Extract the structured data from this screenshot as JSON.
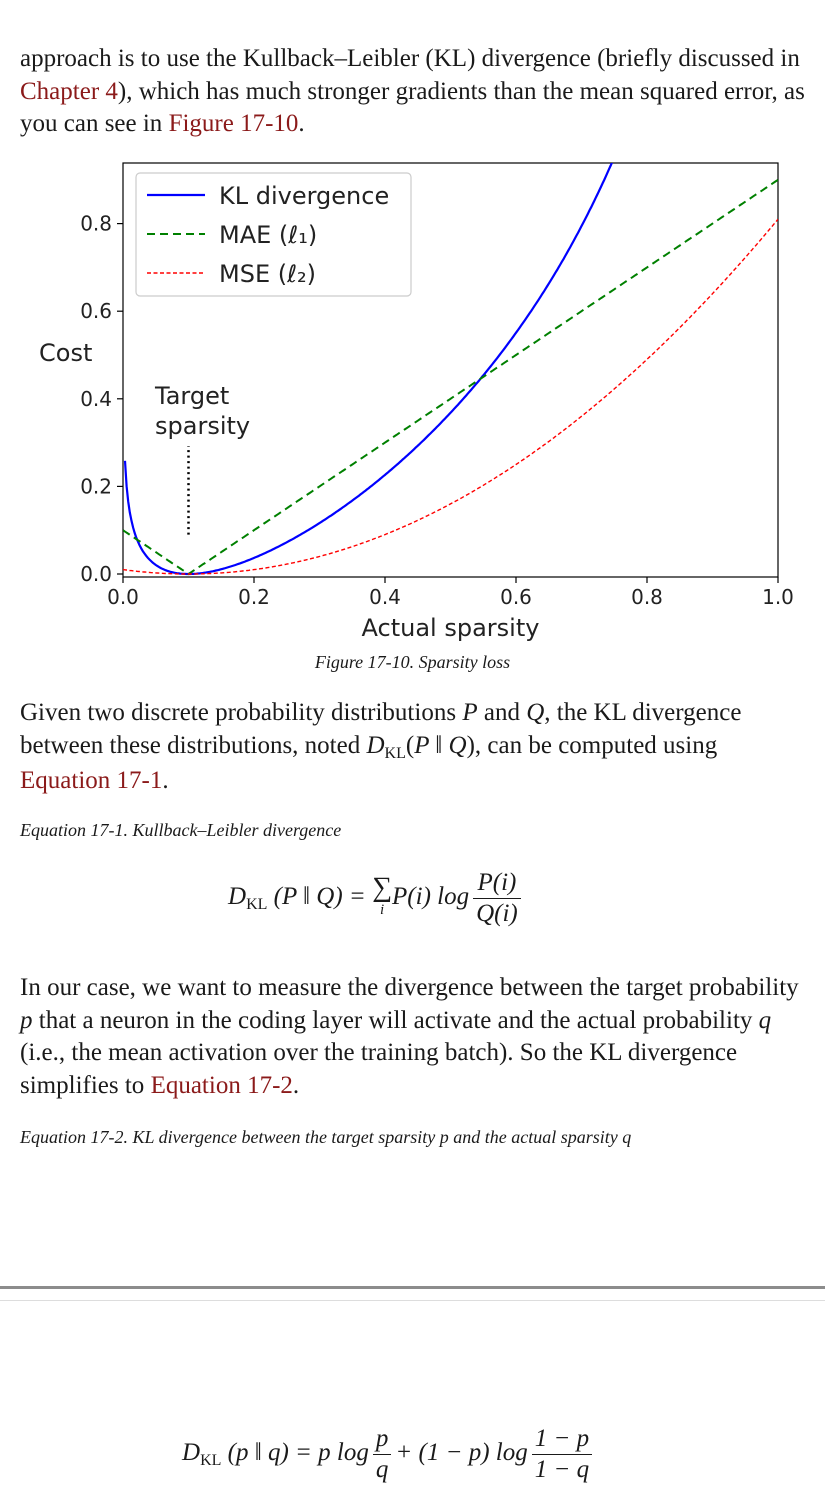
{
  "intro": {
    "text1": "approach is to use the Kullback–Leibler (KL) divergence (briefly discussed in ",
    "link1": "Chapter 4",
    "text2": "), which has much stronger gradients than the mean squared error, as you can see in ",
    "link2": "Figure 17-10",
    "text3": "."
  },
  "figure_caption": "Figure 17-10. Sparsity loss",
  "chart_data": {
    "type": "line",
    "xlabel": "Actual sparsity",
    "ylabel": "Cost",
    "xlim": [
      0.0,
      1.0
    ],
    "ylim": [
      0.0,
      0.9
    ],
    "xticks": [
      "0.0",
      "0.2",
      "0.4",
      "0.6",
      "0.8",
      "1.0"
    ],
    "yticks": [
      "0.0",
      "0.2",
      "0.4",
      "0.6",
      "0.8"
    ],
    "legend_position": "top-left",
    "target_sparsity": 0.1,
    "annotation": {
      "line1": "Target",
      "line2": "sparsity"
    },
    "series": [
      {
        "name": "KL divergence",
        "style": "solid",
        "color": "#0000ff"
      },
      {
        "name": "MAE (ℓ₁)",
        "style": "dashed",
        "color": "#008000"
      },
      {
        "name": "MSE (ℓ₂)",
        "style": "dashed-fine",
        "color": "#ff0000"
      }
    ]
  },
  "para2": {
    "t1": "Given two discrete probability distributions ",
    "P": "P",
    "t2": " and ",
    "Q": "Q",
    "t3": ", the KL divergence between these distributions, noted ",
    "D": "D",
    "KL": "KL",
    "t4": "(",
    "args": "P ‖ Q",
    "t5": "), can be computed using ",
    "link": "Equation 17-1",
    "t6": "."
  },
  "eq1_caption": "Equation 17-1. Kullback–Leibler divergence",
  "eq1": {
    "lhs_D": "D",
    "lhs_sub": "KL",
    "lhs_args": " (P ‖ Q) = ",
    "sum": "∑",
    "sum_sub": "i",
    "term": "P(i) log",
    "num": "P(i)",
    "den": "Q(i)"
  },
  "para3": {
    "t1": "In our case, we want to measure the divergence between the target probability ",
    "p": "p",
    "t2": " that a neuron in the coding layer will activate and the actual probability ",
    "q": "q",
    "t3": " (i.e., the mean activation over the training batch). So the KL divergence simplifies to ",
    "link": "Equation 17-2",
    "t4": "."
  },
  "eq2_caption": "Equation 17-2. KL divergence between the target sparsity p and the actual sparsity q",
  "eq2": {
    "lhs_D": "D",
    "lhs_sub": "KL",
    "lhs_args": " (p ‖ q) = p log",
    "num1": "p",
    "den1": "q",
    "mid": "+ (1 − p) log",
    "num2": "1 − p",
    "den2": "1 − q"
  }
}
